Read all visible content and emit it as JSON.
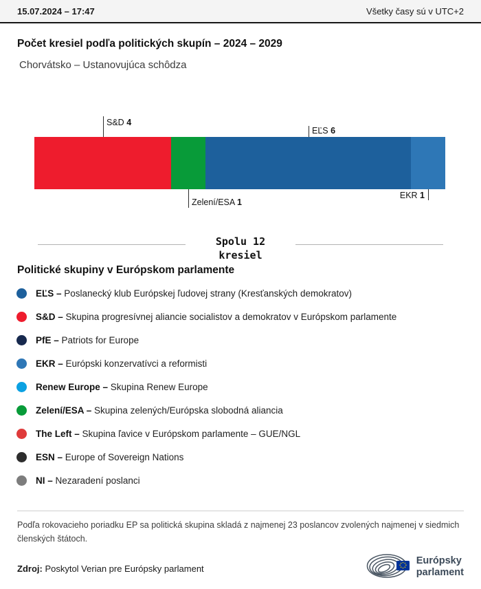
{
  "header": {
    "datetime": "15.07.2024 – 17:47",
    "timezone_note": "Všetky časy sú v UTC+2"
  },
  "title": "Počet kresiel podľa politických skupín – 2024 – 2029",
  "subtitle": "Chorvátsko – Ustanovujúca schôdza",
  "chart_data": {
    "type": "bar",
    "title": "Počet kresiel podľa politických skupín – 2024 – 2029",
    "country": "Chorvátsko – Ustanovujúca schôdza",
    "total_seats": 12,
    "total_label_line1": "Spolu 12",
    "total_label_line2": "kresiel",
    "segments": [
      {
        "name": "S&D",
        "seats": 4,
        "color": "#ee1c2d"
      },
      {
        "name": "Zelení/ESA",
        "seats": 1,
        "color": "#089b39"
      },
      {
        "name": "EĽS",
        "seats": 6,
        "color": "#1d609c"
      },
      {
        "name": "EKR",
        "seats": 1,
        "color": "#2e77b6"
      }
    ]
  },
  "legend": {
    "heading": "Politické skupiny v Európskom parlamente",
    "items": [
      {
        "name": "EĽS –",
        "desc": "Poslanecký klub Európskej ľudovej strany (Kresťanských demokratov)",
        "color": "#1d609c"
      },
      {
        "name": "S&D –",
        "desc": "Skupina progresívnej aliancie socialistov a demokratov v Európskom parlamente",
        "color": "#ee1c2d"
      },
      {
        "name": "PfE –",
        "desc": "Patriots for Europe",
        "color": "#17294e"
      },
      {
        "name": "EKR –",
        "desc": "Európski konzervatívci a reformisti",
        "color": "#2e77b6"
      },
      {
        "name": "Renew Europe –",
        "desc": "Skupina Renew Europe",
        "color": "#0ba1e2"
      },
      {
        "name": "Zelení/ESA –",
        "desc": "Skupina zelených/Európska slobodná aliancia",
        "color": "#089b39"
      },
      {
        "name": "The Left –",
        "desc": "Skupina ľavice v Európskom parlamente – GUE/NGL",
        "color": "#df3b3b"
      },
      {
        "name": "ESN –",
        "desc": "Europe of Sovereign Nations",
        "color": "#2d2d2d"
      },
      {
        "name": "NI –",
        "desc": "Nezaradení poslanci",
        "color": "#7d7d7d"
      }
    ]
  },
  "footnote": "Podľa rokovacieho poriadku EP sa politická skupina skladá z najmenej 23 poslancov zvolených najmenej v siedmich členských štátoch.",
  "source": {
    "label": "Zdroj:",
    "text": " Poskytol Verian pre Európsky parlament"
  },
  "logo": {
    "line1": "Európsky",
    "line2": "parlament"
  }
}
